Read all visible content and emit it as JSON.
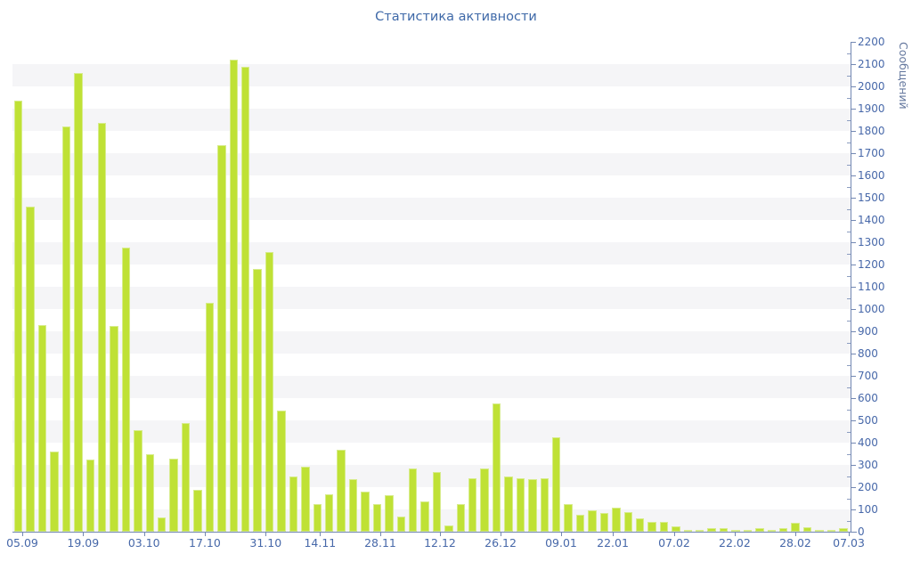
{
  "title": "Статистика активности",
  "chart_data": {
    "type": "bar",
    "title": "Статистика активности",
    "xlabel": "",
    "ylabel": "Сообщений",
    "ylim": [
      0,
      2200
    ],
    "y_tick_step": 100,
    "y_ticks": [
      0,
      100,
      200,
      300,
      400,
      500,
      600,
      700,
      800,
      900,
      1000,
      1100,
      1200,
      1300,
      1400,
      1500,
      1600,
      1700,
      1800,
      1900,
      2000,
      2100,
      2200
    ],
    "x_ticks": [
      {
        "label": "05.09",
        "pos_pct": 1.17
      },
      {
        "label": "19.09",
        "pos_pct": 8.43
      },
      {
        "label": "03.10",
        "pos_pct": 15.7
      },
      {
        "label": "17.10",
        "pos_pct": 22.95
      },
      {
        "label": "31.10",
        "pos_pct": 30.21
      },
      {
        "label": "14.11",
        "pos_pct": 36.7
      },
      {
        "label": "28.11",
        "pos_pct": 43.89
      },
      {
        "label": "12.12",
        "pos_pct": 51.01
      },
      {
        "label": "26.12",
        "pos_pct": 58.24
      },
      {
        "label": "09.01",
        "pos_pct": 65.46
      },
      {
        "label": "22.01",
        "pos_pct": 71.63
      },
      {
        "label": "07.02",
        "pos_pct": 78.96
      },
      {
        "label": "22.02",
        "pos_pct": 86.18
      },
      {
        "label": "28.02",
        "pos_pct": 93.41
      },
      {
        "label": "07.03",
        "pos_pct": 99.79
      }
    ],
    "values": [
      1935,
      1460,
      930,
      360,
      1820,
      2060,
      325,
      1835,
      925,
      1275,
      455,
      350,
      65,
      330,
      490,
      190,
      1030,
      1735,
      2120,
      2090,
      1180,
      1255,
      545,
      250,
      293,
      123,
      170,
      370,
      235,
      180,
      125,
      165,
      68,
      285,
      135,
      270,
      30,
      125,
      240,
      285,
      575,
      250,
      240,
      235,
      240,
      425,
      125,
      75,
      95,
      85,
      110,
      90,
      60,
      45,
      45,
      25,
      10,
      10,
      15,
      15,
      10,
      10,
      15,
      10,
      15,
      40,
      20,
      10,
      10,
      15
    ],
    "grid": "alternating horizontal bands every 100 units",
    "legend": "none",
    "bar_color": "#bfe135",
    "band_color": "#f5f5f7",
    "axis_color": "#7388b3",
    "label_color": "#4768a9"
  }
}
